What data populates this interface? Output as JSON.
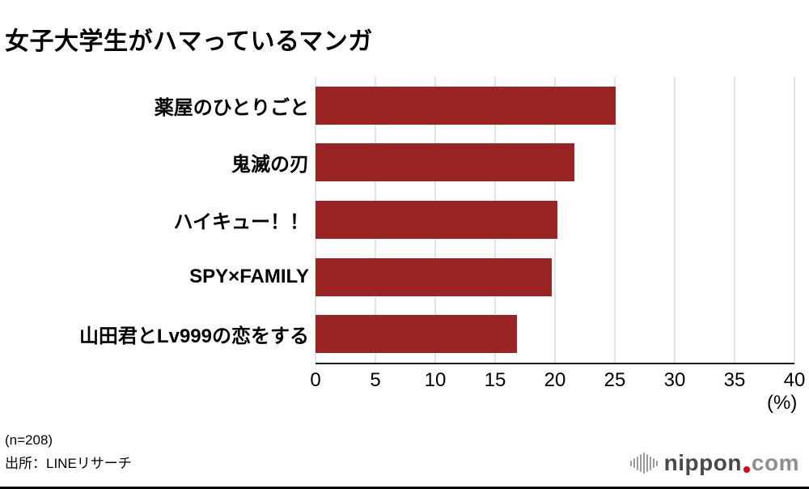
{
  "chart_data": {
    "type": "bar",
    "orientation": "horizontal",
    "title": "女子大学生がハマっているマンガ",
    "categories": [
      "薬屋のひとりごと",
      "鬼滅の刃",
      "ハイキュー！！",
      "SPY×FAMILY",
      "山田君とLv999の恋をする"
    ],
    "values": [
      25.1,
      21.6,
      20.2,
      19.7,
      16.8
    ],
    "xlabel": "(%)",
    "ylabel": "",
    "xlim": [
      0,
      40
    ],
    "xticks": [
      0,
      5,
      10,
      15,
      20,
      25,
      30,
      35,
      40
    ],
    "bar_color": "#9a2423",
    "grid": true,
    "gridline_color": "#c9c9c9",
    "legend": "none"
  },
  "axis": {
    "unit_label": "(%)"
  },
  "footer": {
    "sample_size": "(n=208)",
    "source": "出所：LINEリサーチ",
    "logo": {
      "name": "nippon.com",
      "text_main": "nippon",
      "text_tld": "com",
      "dot_color": "#e60012",
      "main_color": "#4a4a4a",
      "tld_color": "#8f8f8f",
      "mark_color": "#9a9a9a"
    }
  }
}
